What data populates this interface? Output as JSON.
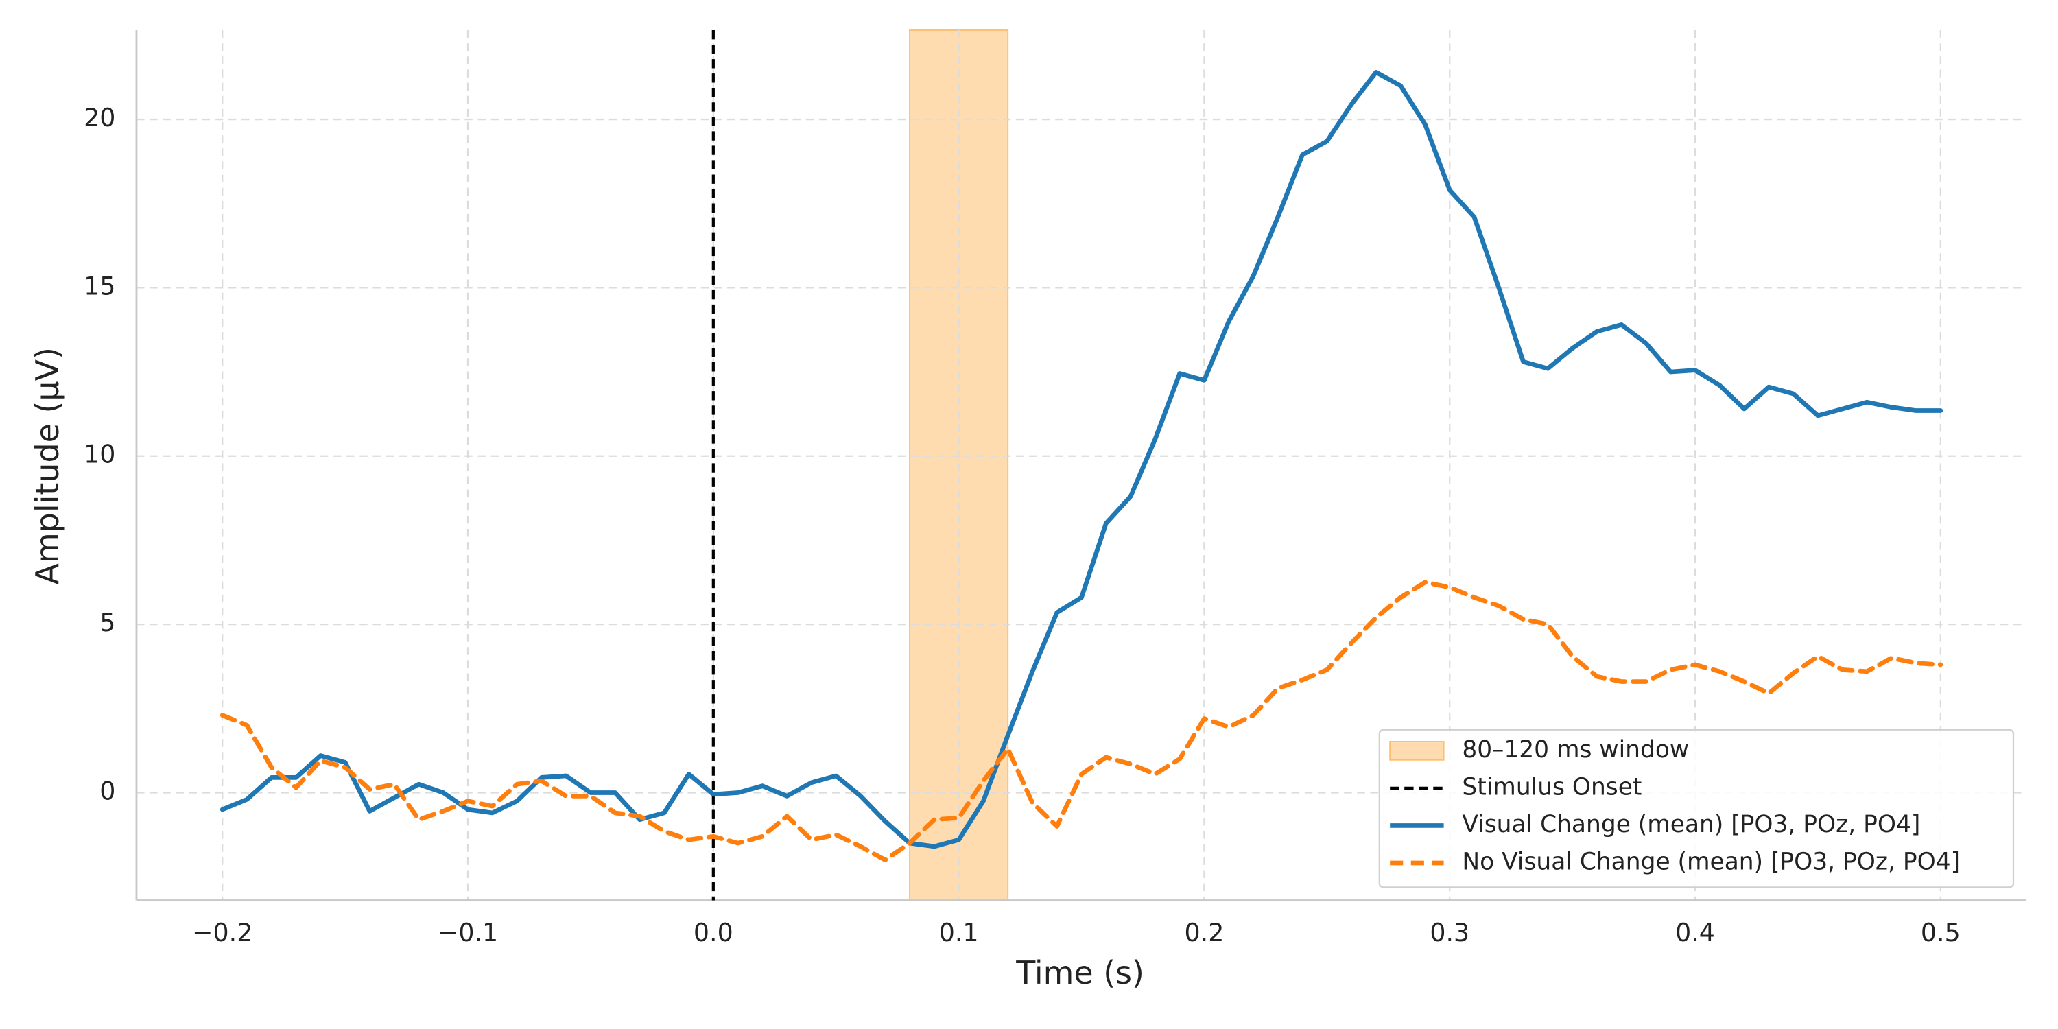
{
  "chart_data": {
    "type": "line",
    "xlabel": "Time (s)",
    "ylabel": "Amplitude (µV)",
    "x": [
      -0.2,
      -0.19,
      -0.18,
      -0.17,
      -0.16,
      -0.15,
      -0.14,
      -0.13,
      -0.12,
      -0.11,
      -0.1,
      -0.09,
      -0.08,
      -0.07,
      -0.06,
      -0.05,
      -0.04,
      -0.03,
      -0.02,
      -0.01,
      0,
      0.01,
      0.02,
      0.03,
      0.04,
      0.05,
      0.06,
      0.07,
      0.08,
      0.09,
      0.1,
      0.11,
      0.12,
      0.13,
      0.14,
      0.15,
      0.16,
      0.17,
      0.18,
      0.19,
      0.2,
      0.21,
      0.22,
      0.23,
      0.24,
      0.25,
      0.26,
      0.27,
      0.28,
      0.29,
      0.3,
      0.31,
      0.32,
      0.33,
      0.34,
      0.35,
      0.36,
      0.37,
      0.38,
      0.39,
      0.4,
      0.41,
      0.42,
      0.43,
      0.44,
      0.45,
      0.46,
      0.47,
      0.48,
      0.49,
      0.5
    ],
    "series": [
      {
        "name": "Visual Change (mean) [PO3, POz, PO4]",
        "color": "#1f77b4",
        "dash": "solid",
        "values": [
          -0.5,
          -0.2,
          0.45,
          0.45,
          1.1,
          0.9,
          -0.55,
          -0.15,
          0.25,
          0,
          -0.5,
          -0.6,
          -0.25,
          0.45,
          0.5,
          0,
          0,
          -0.8,
          -0.6,
          0.55,
          -0.05,
          0,
          0.2,
          -0.1,
          0.3,
          0.5,
          -0.1,
          -0.85,
          -1.5,
          -1.6,
          -1.4,
          -0.25,
          1.7,
          3.6,
          5.35,
          5.8,
          8.0,
          8.8,
          10.5,
          12.45,
          12.25,
          14.0,
          15.35,
          17.1,
          18.95,
          19.35,
          20.45,
          21.4,
          21.0,
          19.85,
          17.9,
          17.1,
          15.0,
          12.8,
          12.6,
          13.2,
          13.7,
          13.9,
          13.35,
          12.5,
          12.55,
          12.1,
          11.4,
          12.05,
          11.85,
          11.2,
          11.4,
          11.6,
          11.45,
          11.35,
          11.35
        ]
      },
      {
        "name": "No Visual Change (mean) [PO3, POz, PO4]",
        "color": "#ff7f0e",
        "dash": "dashed",
        "values": [
          2.3,
          2.0,
          0.75,
          0.15,
          0.95,
          0.75,
          0.1,
          0.25,
          -0.8,
          -0.55,
          -0.25,
          -0.4,
          0.25,
          0.35,
          -0.1,
          -0.1,
          -0.6,
          -0.7,
          -1.15,
          -1.4,
          -1.3,
          -1.5,
          -1.3,
          -0.7,
          -1.4,
          -1.25,
          -1.6,
          -2.0,
          -1.5,
          -0.8,
          -0.75,
          0.35,
          1.3,
          -0.3,
          -1.0,
          0.55,
          1.05,
          0.85,
          0.55,
          1.0,
          2.2,
          1.95,
          2.3,
          3.1,
          3.35,
          3.65,
          4.45,
          5.2,
          5.8,
          6.25,
          6.1,
          5.8,
          5.55,
          5.15,
          5.0,
          4.05,
          3.45,
          3.3,
          3.3,
          3.65,
          3.8,
          3.6,
          3.3,
          2.95,
          3.55,
          4.05,
          3.65,
          3.6,
          4.0,
          3.85,
          3.8
        ]
      }
    ],
    "span": {
      "name": "80–120 ms window",
      "xmin": 0.08,
      "xmax": 0.12,
      "color": "#fdbf6f"
    },
    "vline": {
      "name": "Stimulus Onset",
      "x": 0,
      "color": "#000000"
    },
    "xlim": [
      -0.235,
      0.535
    ],
    "ylim": [
      -3.2,
      22.65
    ],
    "xticks": [
      {
        "value": -0.2,
        "label": "−0.2"
      },
      {
        "value": -0.1,
        "label": "−0.1"
      },
      {
        "value": 0,
        "label": "0.0"
      },
      0.1,
      0.2,
      0.3,
      0.4,
      0.5
    ],
    "yticks": [
      0,
      5,
      10,
      15,
      20
    ],
    "grid": true,
    "legend": "lower right"
  }
}
